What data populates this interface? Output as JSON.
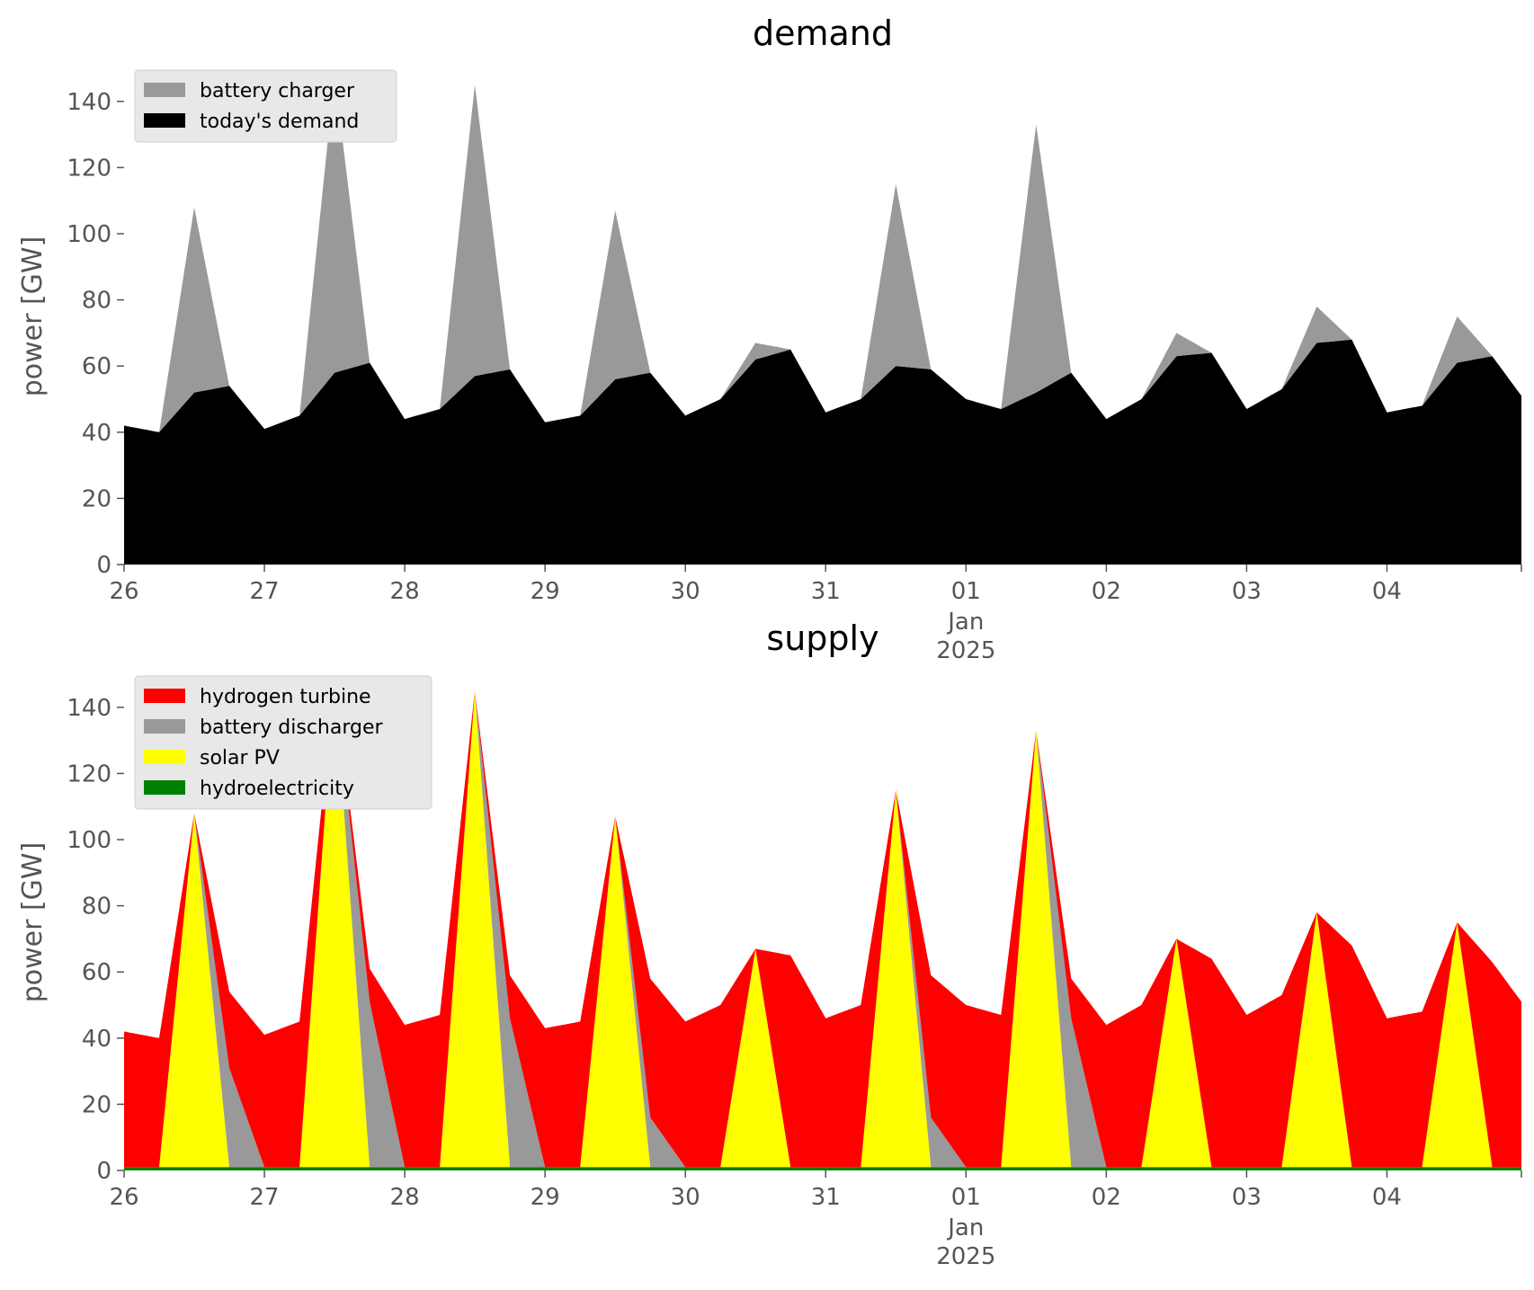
{
  "chart_data": [
    {
      "type": "area",
      "stacked": true,
      "title": "demand",
      "ylabel": "power [GW]",
      "xlabel": "",
      "ylim": [
        0,
        150
      ],
      "yticks": [
        0,
        20,
        40,
        60,
        80,
        100,
        120,
        140
      ],
      "xlim": [
        "2024-12-26",
        "2025-01-04 23:00"
      ],
      "xticks": [
        {
          "date": "2024-12-26",
          "label": "26"
        },
        {
          "date": "2024-12-27",
          "label": "27"
        },
        {
          "date": "2024-12-28",
          "label": "28"
        },
        {
          "date": "2024-12-29",
          "label": "29"
        },
        {
          "date": "2024-12-30",
          "label": "30"
        },
        {
          "date": "2024-12-31",
          "label": "31"
        },
        {
          "date": "2025-01-01",
          "label": "01",
          "sub1": "Jan",
          "sub2": "2025"
        },
        {
          "date": "2025-01-02",
          "label": "02"
        },
        {
          "date": "2025-01-03",
          "label": "03"
        },
        {
          "date": "2025-01-04",
          "label": "04"
        }
      ],
      "grid": false,
      "legend": "top-left",
      "series": [
        {
          "name": "today's demand",
          "color": "#000000",
          "x": [
            "2024-12-26 00:00",
            "2024-12-26 06:00",
            "2024-12-26 12:00",
            "2024-12-26 18:00",
            "2024-12-27 00:00",
            "2024-12-27 06:00",
            "2024-12-27 12:00",
            "2024-12-27 18:00",
            "2024-12-28 00:00",
            "2024-12-28 06:00",
            "2024-12-28 12:00",
            "2024-12-28 18:00",
            "2024-12-29 00:00",
            "2024-12-29 06:00",
            "2024-12-29 12:00",
            "2024-12-29 18:00",
            "2024-12-30 00:00",
            "2024-12-30 06:00",
            "2024-12-30 12:00",
            "2024-12-30 18:00",
            "2024-12-31 00:00",
            "2024-12-31 06:00",
            "2024-12-31 12:00",
            "2024-12-31 18:00",
            "2025-01-01 00:00",
            "2025-01-01 06:00",
            "2025-01-01 12:00",
            "2025-01-01 18:00",
            "2025-01-02 00:00",
            "2025-01-02 06:00",
            "2025-01-02 12:00",
            "2025-01-02 18:00",
            "2025-01-03 00:00",
            "2025-01-03 06:00",
            "2025-01-03 12:00",
            "2025-01-03 18:00",
            "2025-01-04 00:00",
            "2025-01-04 06:00",
            "2025-01-04 12:00",
            "2025-01-04 18:00",
            "2025-01-04 23:00"
          ],
          "values": [
            42,
            40,
            52,
            54,
            41,
            45,
            58,
            61,
            44,
            47,
            57,
            59,
            43,
            45,
            56,
            58,
            45,
            50,
            62,
            65,
            46,
            50,
            60,
            59,
            50,
            47,
            52,
            58,
            44,
            50,
            63,
            64,
            47,
            53,
            67,
            68,
            46,
            48,
            61,
            63,
            51
          ]
        },
        {
          "name": "battery charger",
          "color": "#999999",
          "x": [
            "2024-12-26 00:00",
            "2024-12-26 06:00",
            "2024-12-26 12:00",
            "2024-12-26 18:00",
            "2024-12-27 00:00",
            "2024-12-27 06:00",
            "2024-12-27 12:00",
            "2024-12-27 18:00",
            "2024-12-28 00:00",
            "2024-12-28 06:00",
            "2024-12-28 12:00",
            "2024-12-28 18:00",
            "2024-12-29 00:00",
            "2024-12-29 06:00",
            "2024-12-29 12:00",
            "2024-12-29 18:00",
            "2024-12-30 00:00",
            "2024-12-30 06:00",
            "2024-12-30 12:00",
            "2024-12-30 18:00",
            "2024-12-31 00:00",
            "2024-12-31 06:00",
            "2024-12-31 12:00",
            "2024-12-31 18:00",
            "2025-01-01 00:00",
            "2025-01-01 06:00",
            "2025-01-01 12:00",
            "2025-01-01 18:00",
            "2025-01-02 00:00",
            "2025-01-02 06:00",
            "2025-01-02 12:00",
            "2025-01-02 18:00",
            "2025-01-03 00:00",
            "2025-01-03 06:00",
            "2025-01-03 12:00",
            "2025-01-03 18:00",
            "2025-01-04 00:00",
            "2025-01-04 06:00",
            "2025-01-04 12:00",
            "2025-01-04 18:00",
            "2025-01-04 23:00"
          ],
          "values": [
            0,
            0,
            56,
            0,
            0,
            0,
            90,
            0,
            0,
            0,
            88,
            0,
            0,
            0,
            51,
            0,
            0,
            0,
            5,
            0,
            0,
            0,
            55,
            0,
            0,
            0,
            81,
            0,
            0,
            0,
            7,
            0,
            0,
            0,
            11,
            0,
            0,
            0,
            14,
            0,
            0
          ]
        }
      ]
    },
    {
      "type": "area",
      "stacked": true,
      "title": "supply",
      "ylabel": "power [GW]",
      "xlabel": "",
      "ylim": [
        0,
        150
      ],
      "yticks": [
        0,
        20,
        40,
        60,
        80,
        100,
        120,
        140
      ],
      "xlim": [
        "2024-12-26",
        "2025-01-04 23:00"
      ],
      "xticks": [
        {
          "date": "2024-12-26",
          "label": "26"
        },
        {
          "date": "2024-12-27",
          "label": "27"
        },
        {
          "date": "2024-12-28",
          "label": "28"
        },
        {
          "date": "2024-12-29",
          "label": "29"
        },
        {
          "date": "2024-12-30",
          "label": "30"
        },
        {
          "date": "2024-12-31",
          "label": "31"
        },
        {
          "date": "2025-01-01",
          "label": "01",
          "sub1": "Jan",
          "sub2": "2025"
        },
        {
          "date": "2025-01-02",
          "label": "02"
        },
        {
          "date": "2025-01-03",
          "label": "03"
        },
        {
          "date": "2025-01-04",
          "label": "04"
        }
      ],
      "grid": false,
      "legend": "top-left",
      "legend_order": [
        "hydrogen turbine",
        "battery discharger",
        "solar PV",
        "hydroelectricity"
      ],
      "series": [
        {
          "name": "hydroelectricity",
          "color": "#008000",
          "x": [
            "2024-12-26 00:00",
            "2025-01-04 23:00"
          ],
          "values": [
            1,
            1
          ]
        },
        {
          "name": "solar PV",
          "color": "#ffff00",
          "x": [
            "2024-12-26 00:00",
            "2024-12-26 06:00",
            "2024-12-26 12:00",
            "2024-12-26 18:00",
            "2024-12-27 00:00",
            "2024-12-27 06:00",
            "2024-12-27 12:00",
            "2024-12-27 18:00",
            "2024-12-28 00:00",
            "2024-12-28 06:00",
            "2024-12-28 12:00",
            "2024-12-28 18:00",
            "2024-12-29 00:00",
            "2024-12-29 06:00",
            "2024-12-29 12:00",
            "2024-12-29 18:00",
            "2024-12-30 00:00",
            "2024-12-30 06:00",
            "2024-12-30 12:00",
            "2024-12-30 18:00",
            "2024-12-31 00:00",
            "2024-12-31 06:00",
            "2024-12-31 12:00",
            "2024-12-31 18:00",
            "2025-01-01 00:00",
            "2025-01-01 06:00",
            "2025-01-01 12:00",
            "2025-01-01 18:00",
            "2025-01-02 00:00",
            "2025-01-02 06:00",
            "2025-01-02 12:00",
            "2025-01-02 18:00",
            "2025-01-03 00:00",
            "2025-01-03 06:00",
            "2025-01-03 12:00",
            "2025-01-03 18:00",
            "2025-01-04 00:00",
            "2025-01-04 06:00",
            "2025-01-04 12:00",
            "2025-01-04 18:00",
            "2025-01-04 23:00"
          ],
          "values": [
            0,
            0,
            107,
            0,
            0,
            0,
            147,
            0,
            0,
            0,
            144,
            0,
            0,
            0,
            106,
            0,
            0,
            0,
            66,
            0,
            0,
            0,
            114,
            0,
            0,
            0,
            132,
            0,
            0,
            0,
            69,
            0,
            0,
            0,
            77,
            0,
            0,
            0,
            74,
            0,
            0
          ]
        },
        {
          "name": "battery discharger",
          "color": "#999999",
          "x": [
            "2024-12-26 00:00",
            "2024-12-26 06:00",
            "2024-12-26 12:00",
            "2024-12-26 18:00",
            "2024-12-27 00:00",
            "2024-12-27 06:00",
            "2024-12-27 12:00",
            "2024-12-27 18:00",
            "2024-12-28 00:00",
            "2024-12-28 06:00",
            "2024-12-28 12:00",
            "2024-12-28 18:00",
            "2024-12-29 00:00",
            "2024-12-29 06:00",
            "2024-12-29 12:00",
            "2024-12-29 18:00",
            "2024-12-30 00:00",
            "2024-12-30 06:00",
            "2024-12-30 12:00",
            "2024-12-30 18:00",
            "2024-12-31 00:00",
            "2024-12-31 06:00",
            "2024-12-31 12:00",
            "2024-12-31 18:00",
            "2025-01-01 00:00",
            "2025-01-01 06:00",
            "2025-01-01 12:00",
            "2025-01-01 18:00",
            "2025-01-02 00:00",
            "2025-01-02 06:00",
            "2025-01-02 12:00",
            "2025-01-02 18:00",
            "2025-01-03 00:00",
            "2025-01-03 06:00",
            "2025-01-03 12:00",
            "2025-01-03 18:00",
            "2025-01-04 00:00",
            "2025-01-04 06:00",
            "2025-01-04 12:00",
            "2025-01-04 18:00",
            "2025-01-04 23:00"
          ],
          "values": [
            0,
            0,
            0,
            30,
            0,
            0,
            0,
            50,
            0,
            0,
            0,
            45,
            0,
            0,
            0,
            15,
            0,
            0,
            0,
            0,
            0,
            0,
            0,
            15,
            0,
            0,
            0,
            45,
            0,
            0,
            0,
            0,
            0,
            0,
            0,
            0,
            0,
            0,
            0,
            0,
            0
          ]
        },
        {
          "name": "hydrogen turbine",
          "color": "#ff0000",
          "x": [
            "2024-12-26 00:00",
            "2024-12-26 06:00",
            "2024-12-26 12:00",
            "2024-12-26 18:00",
            "2024-12-27 00:00",
            "2024-12-27 06:00",
            "2024-12-27 12:00",
            "2024-12-27 18:00",
            "2024-12-28 00:00",
            "2024-12-28 06:00",
            "2024-12-28 12:00",
            "2024-12-28 18:00",
            "2024-12-29 00:00",
            "2024-12-29 06:00",
            "2024-12-29 12:00",
            "2024-12-29 18:00",
            "2024-12-30 00:00",
            "2024-12-30 06:00",
            "2024-12-30 12:00",
            "2024-12-30 18:00",
            "2024-12-31 00:00",
            "2024-12-31 06:00",
            "2024-12-31 12:00",
            "2024-12-31 18:00",
            "2025-01-01 00:00",
            "2025-01-01 06:00",
            "2025-01-01 12:00",
            "2025-01-01 18:00",
            "2025-01-02 00:00",
            "2025-01-02 06:00",
            "2025-01-02 12:00",
            "2025-01-02 18:00",
            "2025-01-03 00:00",
            "2025-01-03 06:00",
            "2025-01-03 12:00",
            "2025-01-03 18:00",
            "2025-01-04 00:00",
            "2025-01-04 06:00",
            "2025-01-04 12:00",
            "2025-01-04 18:00",
            "2025-01-04 23:00"
          ],
          "values": [
            41,
            39,
            0,
            23,
            40,
            44,
            0,
            10,
            43,
            46,
            0,
            13,
            42,
            44,
            0,
            42,
            44,
            49,
            0,
            64,
            45,
            49,
            0,
            43,
            49,
            46,
            0,
            12,
            43,
            49,
            0,
            63,
            46,
            52,
            0,
            67,
            45,
            47,
            0,
            62,
            50
          ]
        }
      ]
    }
  ]
}
